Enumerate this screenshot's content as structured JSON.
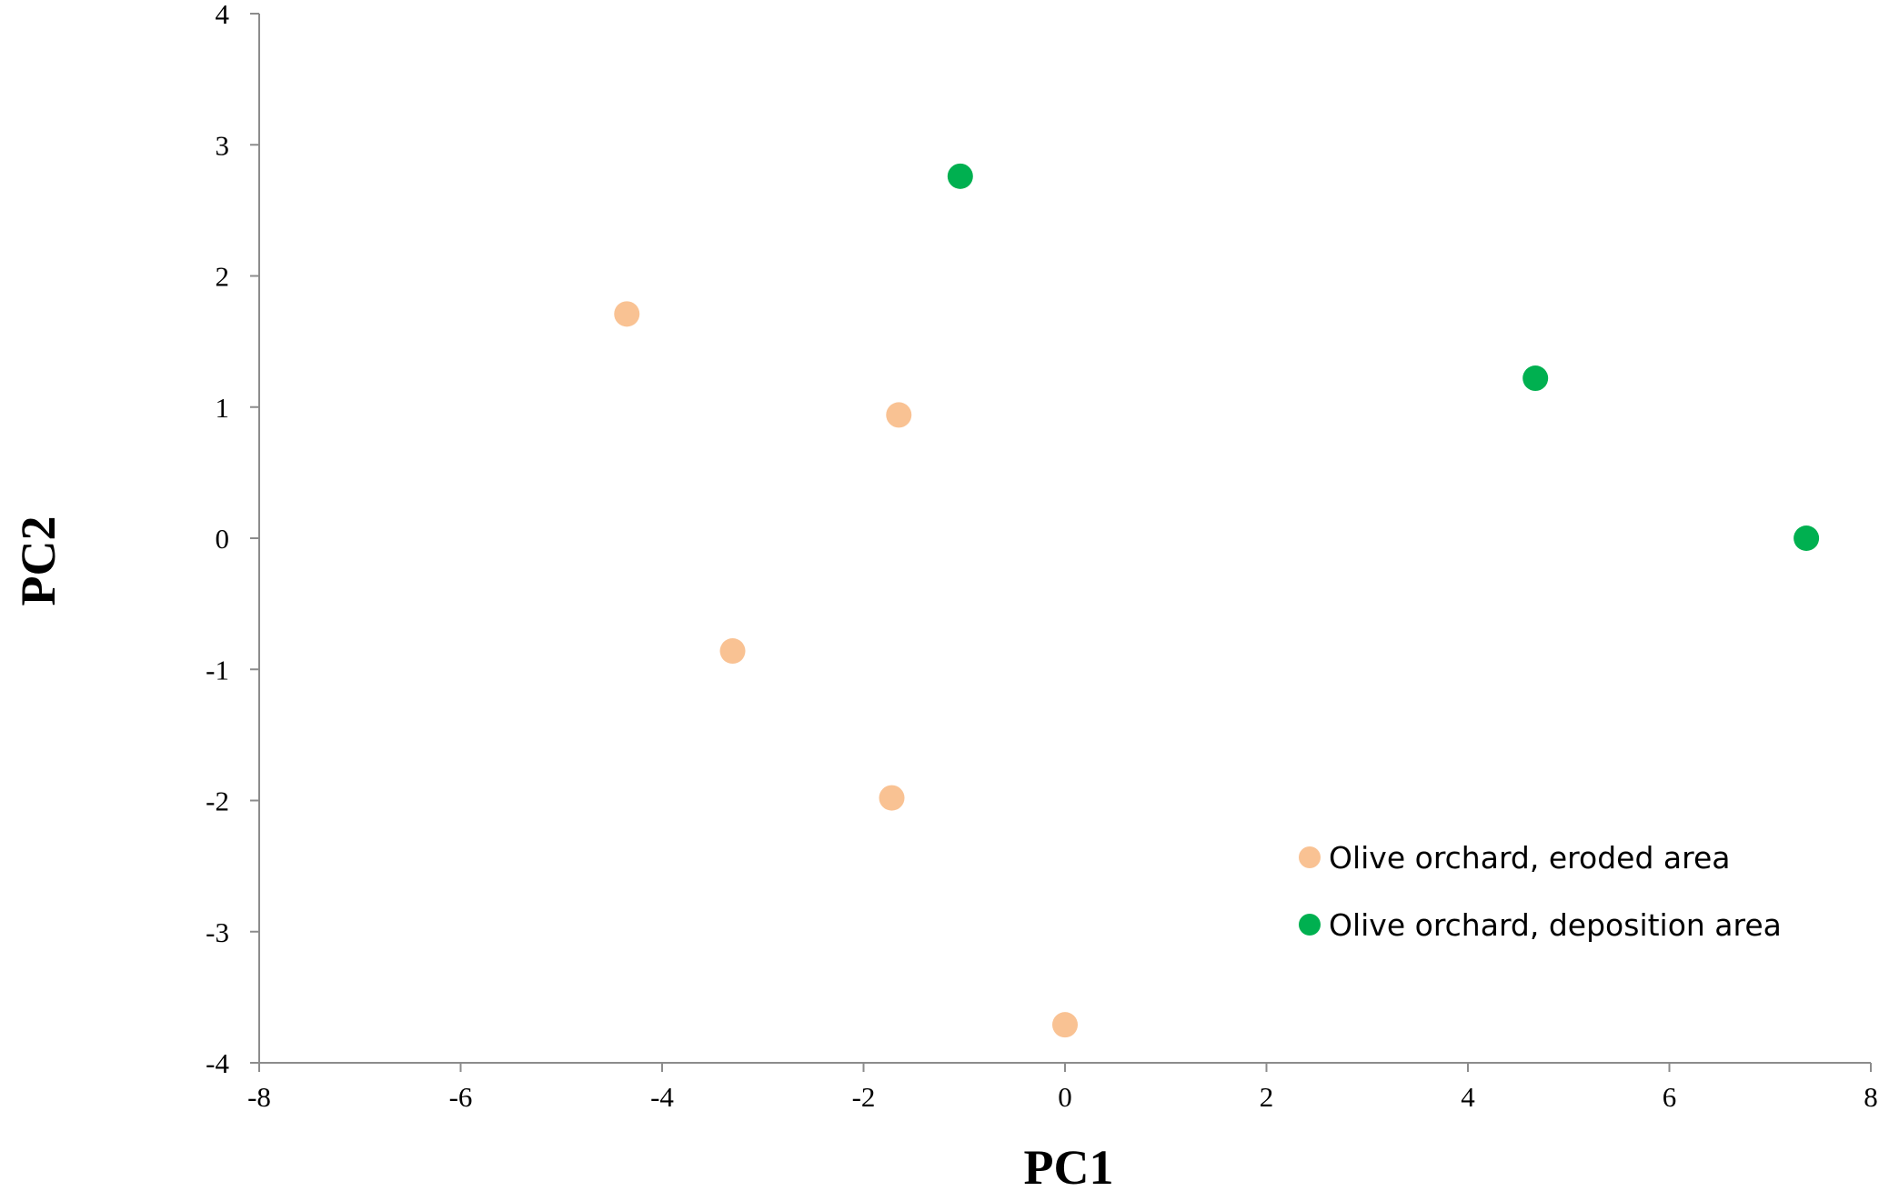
{
  "chart_data": {
    "type": "scatter",
    "xlabel": "PC1",
    "ylabel": "PC2",
    "xlim": [
      -8,
      8
    ],
    "ylim": [
      -4,
      4
    ],
    "x_ticks": [
      -8,
      -6,
      -4,
      -2,
      0,
      2,
      4,
      6,
      8
    ],
    "y_ticks": [
      -4,
      -3,
      -2,
      -1,
      0,
      1,
      2,
      3,
      4
    ],
    "grid": false,
    "legend_position": "lower-right",
    "series": [
      {
        "name": "Olive orchard, eroded area",
        "color": "#f9c293",
        "points": [
          {
            "x": -4.35,
            "y": 1.71
          },
          {
            "x": -1.65,
            "y": 0.94
          },
          {
            "x": -3.3,
            "y": -0.86
          },
          {
            "x": -1.72,
            "y": -1.98
          },
          {
            "x": 0.0,
            "y": -3.71
          }
        ]
      },
      {
        "name": "Olive orchard, deposition area",
        "color": "#00b050",
        "points": [
          {
            "x": -1.04,
            "y": 2.76
          },
          {
            "x": 4.67,
            "y": 1.22
          },
          {
            "x": 7.36,
            "y": 0.0
          }
        ]
      }
    ]
  }
}
